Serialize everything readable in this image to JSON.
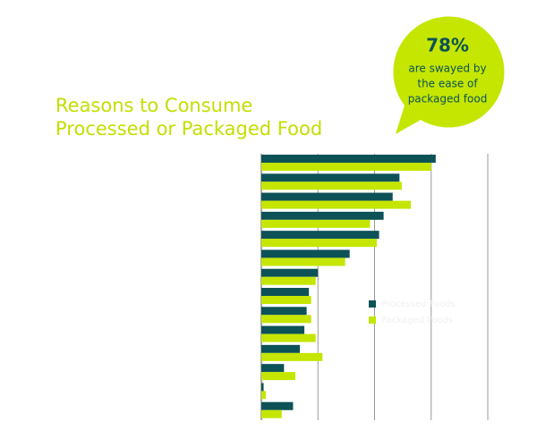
{
  "chart_data": {
    "type": "hbar",
    "title_lines": [
      "Reasons to Consume",
      "Processed or Packaged Food"
    ],
    "callout": {
      "value": "78%",
      "lines": [
        "are swayed by",
        "the ease of",
        "packaged food"
      ]
    },
    "categories": [
      null,
      null,
      null,
      null,
      null,
      null,
      null,
      null,
      null,
      null,
      null,
      null,
      null,
      null
    ],
    "series": [
      {
        "name": "Processed Foods",
        "color": "#0d5257",
        "values": [
          77,
          61,
          58,
          54,
          52,
          39,
          25,
          21,
          20,
          19,
          17,
          10,
          1,
          14
        ]
      },
      {
        "name": "Packaged Foods",
        "color": "#c4e600",
        "values": [
          75,
          62,
          66,
          48,
          51,
          37,
          24,
          22,
          22,
          24,
          27,
          15,
          2,
          9
        ]
      }
    ],
    "xlim": [
      0,
      100
    ],
    "xticks": [
      0,
      25,
      50,
      75,
      100
    ],
    "grid": true,
    "legend": "center-right"
  }
}
